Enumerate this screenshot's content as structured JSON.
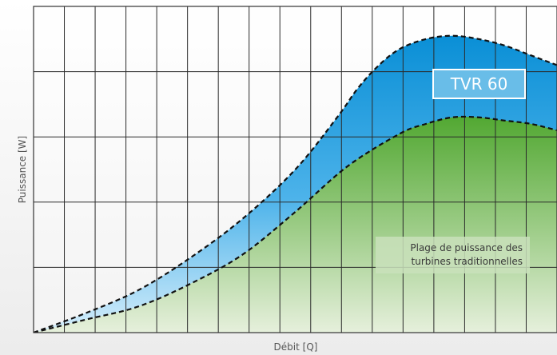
{
  "chart_data": {
    "type": "area",
    "xlabel": "Débit [Q]",
    "ylabel": "Puissance [W]",
    "xlim": [
      0,
      100
    ],
    "ylim": [
      0,
      100
    ],
    "grid": true,
    "grid_divisions": {
      "x": 17,
      "y": 5
    },
    "series": [
      {
        "name": "TVR 60",
        "color": "#0a8fd6",
        "line": "dashed",
        "x": [
          0,
          10,
          20,
          30,
          40,
          50,
          58,
          62,
          66,
          70,
          75,
          80,
          85,
          90,
          95,
          100
        ],
        "y": [
          0,
          6,
          13,
          23,
          35,
          50,
          66,
          75,
          82,
          87,
          90,
          91,
          90,
          88,
          85,
          82
        ]
      },
      {
        "name": "Plage de puissance des turbines traditionnelles",
        "color": "#5aac3c",
        "line": "dashed",
        "x": [
          0,
          10,
          20,
          30,
          40,
          50,
          60,
          70,
          75,
          80,
          85,
          90,
          95,
          100
        ],
        "y": [
          0,
          4,
          8,
          15,
          24,
          37,
          51,
          61,
          64,
          66,
          66,
          65,
          64,
          62
        ]
      }
    ],
    "annotations": [
      {
        "text": "TVR 60",
        "anchor": "upper-right"
      },
      {
        "text_lines": [
          "Plage de puissance des",
          "turbines traditionnelles"
        ],
        "anchor": "lower-right"
      }
    ]
  }
}
